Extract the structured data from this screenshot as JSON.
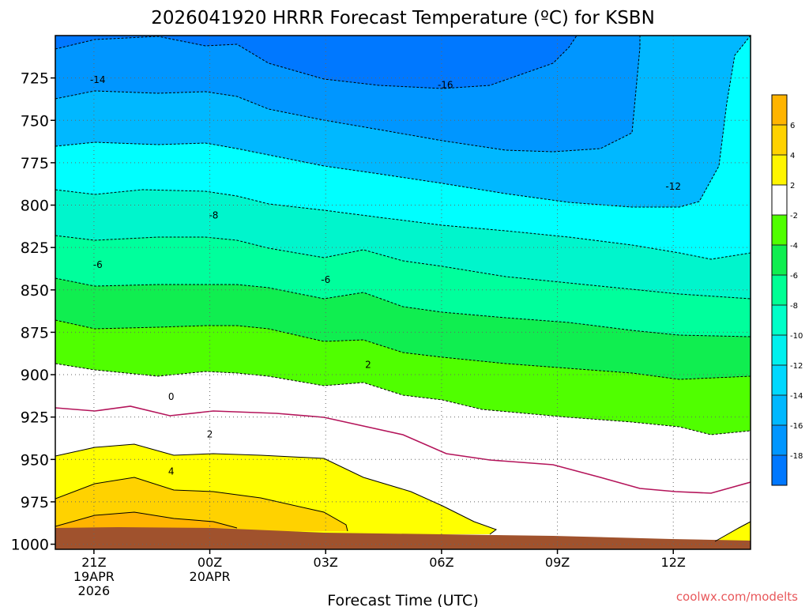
{
  "chart_data": {
    "type": "heatmap",
    "title": "2026041920 HRRR Forecast Temperature (ºC) for KSBN",
    "xlabel": "Forecast Time (UTC)",
    "ylabel": "",
    "credit": "coolwx.com/modelts",
    "x_ticks": [
      {
        "hour": 1,
        "lines": [
          "21Z",
          "19APR",
          "2026"
        ]
      },
      {
        "hour": 4,
        "lines": [
          "00Z",
          "20APR"
        ]
      },
      {
        "hour": 7,
        "lines": [
          "03Z"
        ]
      },
      {
        "hour": 10,
        "lines": [
          "06Z"
        ]
      },
      {
        "hour": 13,
        "lines": [
          "09Z"
        ]
      },
      {
        "hour": 16,
        "lines": [
          "12Z"
        ]
      }
    ],
    "xlim": [
      0,
      18
    ],
    "y_ticks": [
      725,
      750,
      775,
      800,
      825,
      850,
      875,
      900,
      925,
      950,
      975,
      1000
    ],
    "ylim": [
      1003,
      700
    ],
    "units": "hPa",
    "grid": true,
    "contour_labels": [
      {
        "text": "-14",
        "hour": 1.1,
        "p": 728
      },
      {
        "text": "-16",
        "hour": 10.1,
        "p": 731
      },
      {
        "text": "-12",
        "hour": 16.0,
        "p": 791
      },
      {
        "text": "-8",
        "hour": 4.1,
        "p": 808
      },
      {
        "text": "-6",
        "hour": 1.1,
        "p": 837
      },
      {
        "text": "-6",
        "hour": 7.0,
        "p": 846
      },
      {
        "text": "2",
        "hour": 8.1,
        "p": 896
      },
      {
        "text": "0",
        "hour": 3.0,
        "p": 915
      },
      {
        "text": "2",
        "hour": 4.0,
        "p": 937
      },
      {
        "text": "4",
        "hour": 3.0,
        "p": 959
      }
    ],
    "colorbar": {
      "labels": [
        "6",
        "4",
        "2",
        "-2",
        "-4",
        "-6",
        "-8",
        "-10",
        "-12",
        "-14",
        "-16",
        "-18"
      ],
      "colors": [
        "#ffb400",
        "#ffd200",
        "#fff500",
        "#ffffff",
        "#50ff00",
        "#10ee50",
        "#00ff94",
        "#00ffc8",
        "#00f0ee",
        "#00d8ff",
        "#00b8ff",
        "#0096ff",
        "#0078ff"
      ]
    }
  }
}
